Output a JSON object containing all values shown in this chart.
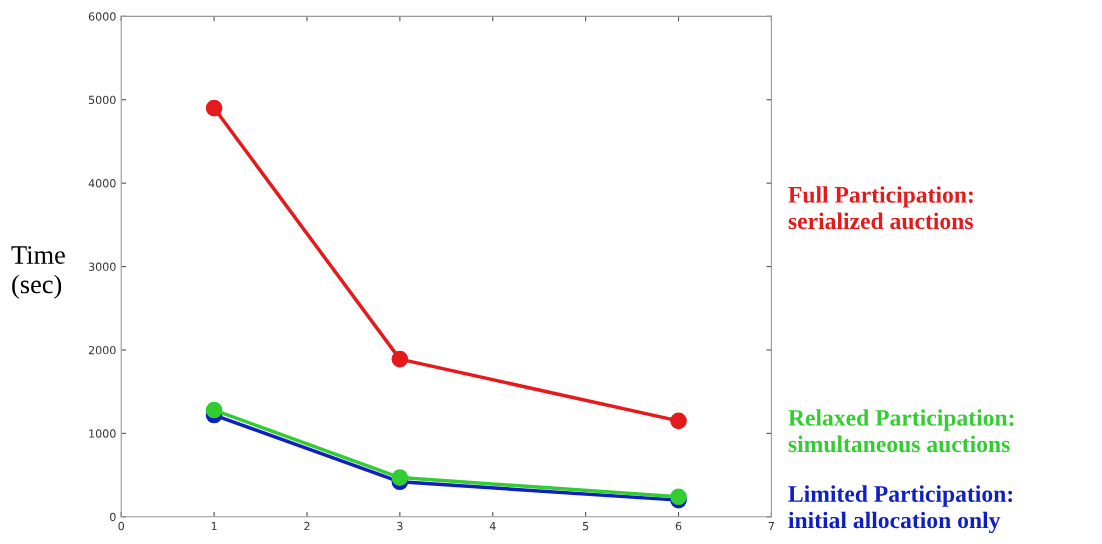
{
  "chart_data": {
    "type": "line",
    "ylabel": "Time\n(sec)",
    "x": [
      1,
      3,
      6
    ],
    "series": [
      {
        "name": "Full Participation:\nserialized auctions",
        "color": "#e41a1c",
        "values": [
          4900,
          1890,
          1150
        ]
      },
      {
        "name": "Relaxed Participation:\nsimultaneous auctions",
        "color": "#33cc33",
        "values": [
          1280,
          470,
          240
        ]
      },
      {
        "name": "Limited Participation:\ninitial allocation only",
        "color": "#1020c0",
        "values": [
          1220,
          420,
          200
        ]
      }
    ],
    "xlim": [
      0,
      7
    ],
    "xticks": [
      0,
      1,
      2,
      3,
      4,
      5,
      6,
      7
    ],
    "ylim": [
      0,
      6000
    ],
    "yticks": [
      0,
      1000,
      2000,
      3000,
      4000,
      5000,
      6000
    ],
    "marker": "circle",
    "line_style": "solid",
    "grid": false,
    "legend": "right"
  }
}
